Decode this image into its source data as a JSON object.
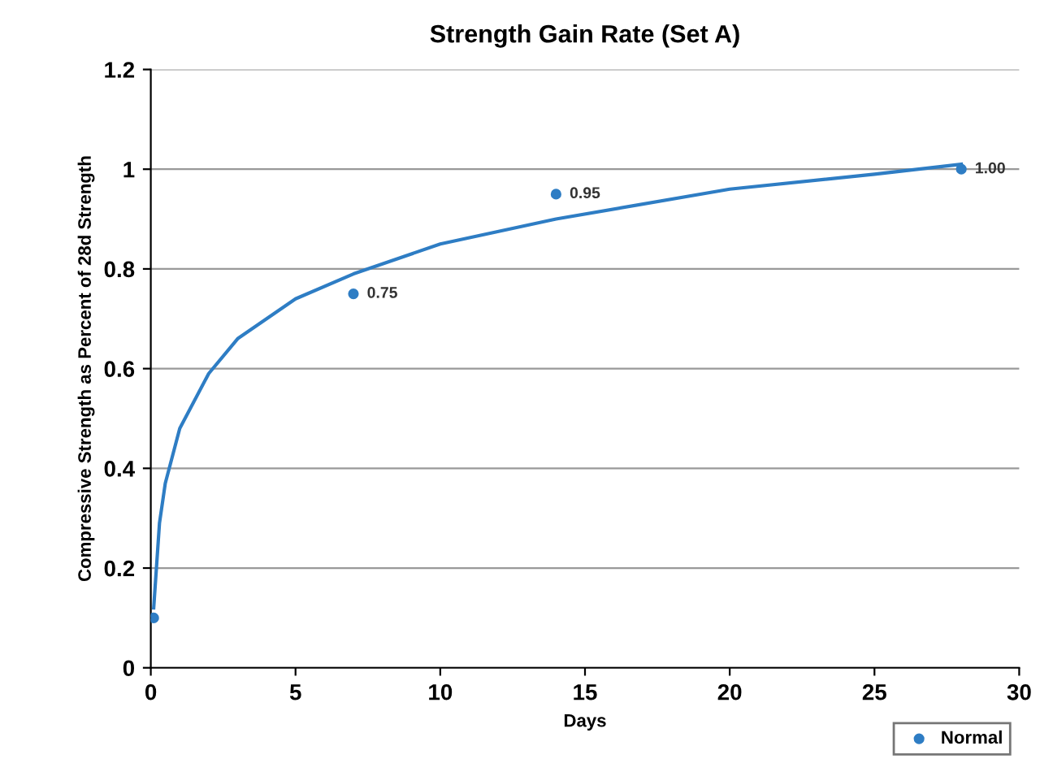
{
  "chart_data": {
    "type": "scatter",
    "title": "Strength Gain Rate (Set A)",
    "xlabel": "Days",
    "ylabel": "Compressive Strength as Percent of 28d Strength",
    "series": [
      {
        "name": "Normal",
        "marker": "circle",
        "color": "#2e7dc4",
        "x": [
          0.1,
          7,
          14,
          28
        ],
        "values": [
          0.1,
          0.75,
          0.95,
          1.0
        ],
        "value_labels": [
          null,
          "0.75",
          "0.95",
          "1.00"
        ]
      },
      {
        "type": "line",
        "color": "#2e7dc4",
        "x": [
          0.1,
          0.3,
          0.5,
          1,
          2,
          3,
          5,
          7,
          10,
          14,
          20,
          25,
          28
        ],
        "values": [
          0.12,
          0.29,
          0.37,
          0.48,
          0.59,
          0.66,
          0.74,
          0.79,
          0.85,
          0.9,
          0.96,
          0.99,
          1.01
        ]
      }
    ],
    "xlim": [
      0,
      30
    ],
    "xticks": [
      0,
      5,
      10,
      15,
      20,
      25,
      30
    ],
    "ylim": [
      0,
      1.2
    ],
    "yticks": [
      0,
      0.2,
      0.4,
      0.6,
      0.8,
      1,
      1.2
    ],
    "grid": "y",
    "legend": "bottom right"
  }
}
